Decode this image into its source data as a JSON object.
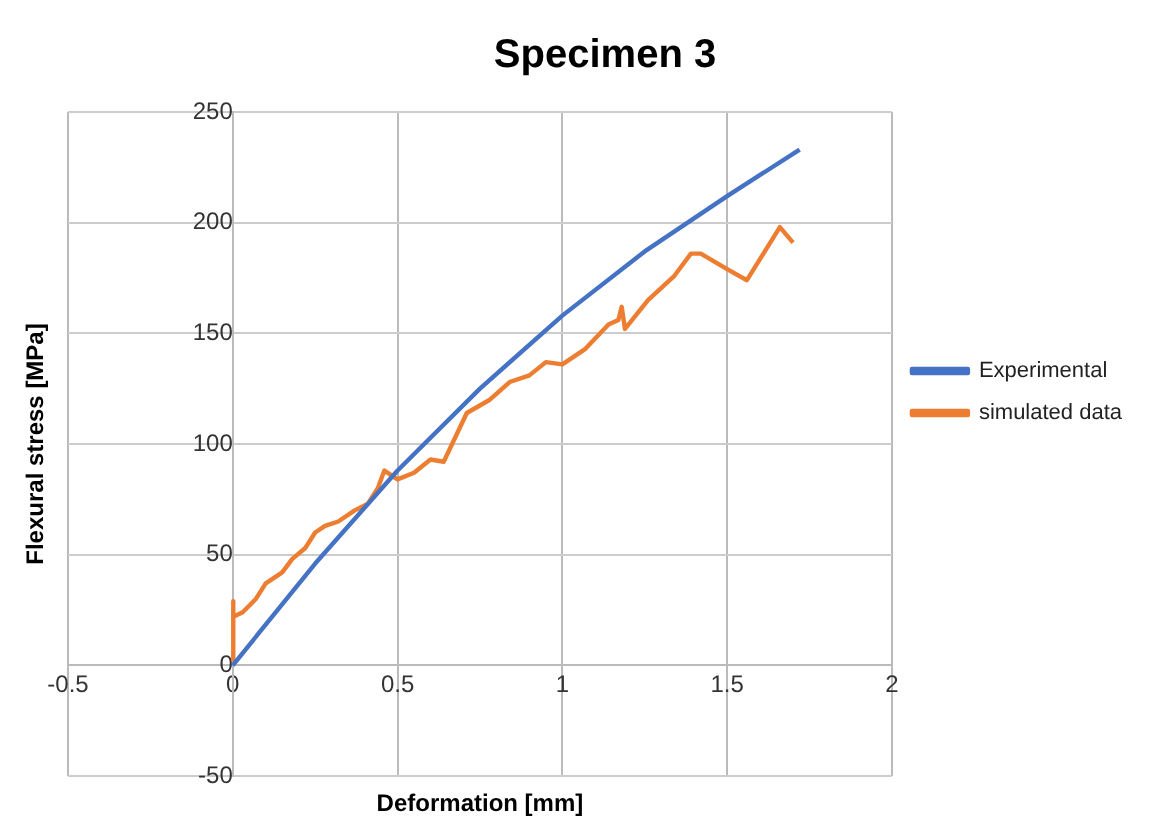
{
  "chart_data": {
    "type": "line",
    "title": "Specimen 3",
    "xlabel": "Deformation [mm]",
    "ylabel": "Flexural stress [MPa]",
    "xlim": [
      -0.5,
      2
    ],
    "xticks": [
      -0.5,
      0,
      0.5,
      1,
      1.5,
      2
    ],
    "ylim": [
      -50,
      250
    ],
    "yticks": [
      -50,
      0,
      50,
      100,
      150,
      200,
      250
    ],
    "grid": true,
    "legend": "right",
    "marker": "none",
    "line_style": "solid",
    "series": [
      {
        "name": "Experimental",
        "color": "#4472c4",
        "x": [
          0,
          0.25,
          0.5,
          0.75,
          1,
          1.25,
          1.5,
          1.72
        ],
        "values": [
          0,
          46,
          88,
          125,
          158,
          187,
          212,
          233
        ]
      },
      {
        "name": "simulated data",
        "color": "#ed7d31",
        "x": [
          0,
          0,
          0.003,
          0.03,
          0.07,
          0.1,
          0.15,
          0.18,
          0.22,
          0.25,
          0.28,
          0.32,
          0.37,
          0.41,
          0.44,
          0.46,
          0.5,
          0.55,
          0.6,
          0.64,
          0.71,
          0.78,
          0.84,
          0.9,
          0.95,
          1.0,
          1.07,
          1.14,
          1.17,
          1.18,
          1.19,
          1.26,
          1.34,
          1.39,
          1.42,
          1.5,
          1.56,
          1.66,
          1.7
        ],
        "values": [
          2,
          29,
          22,
          24,
          30,
          37,
          42,
          48,
          53,
          60,
          63,
          65,
          70,
          73,
          80,
          88,
          84,
          87,
          93,
          92,
          114,
          120,
          128,
          131,
          137,
          136,
          143,
          154,
          156,
          162,
          152,
          165,
          176,
          186,
          186,
          179,
          174,
          198,
          191
        ]
      }
    ]
  }
}
